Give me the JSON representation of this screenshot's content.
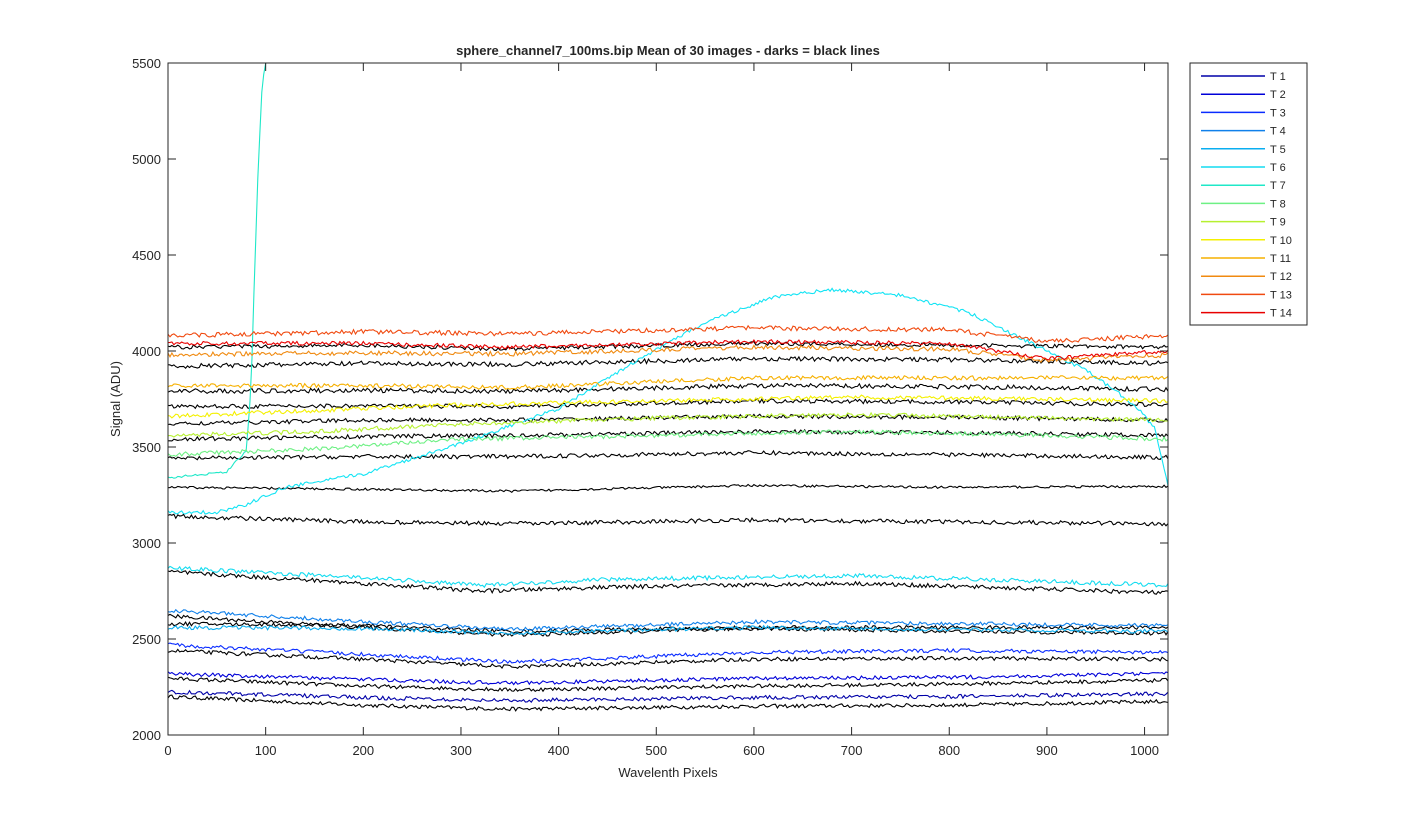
{
  "chart_data": {
    "type": "line",
    "title": "sphere_channel7_100ms.bip  Mean of 30 images - darks = black lines",
    "xlabel": "Wavelenth Pixels",
    "ylabel": "Signal (ADU)",
    "xlim": [
      0,
      1024
    ],
    "ylim": [
      2000,
      5500
    ],
    "xticks": [
      "0",
      "100",
      "200",
      "300",
      "400",
      "500",
      "600",
      "700",
      "800",
      "900",
      "1000"
    ],
    "yticks": [
      "2000",
      "2500",
      "3000",
      "3500",
      "4000",
      "4500",
      "5000",
      "5500"
    ],
    "grid": false,
    "legend_position": "outside-right",
    "series": [
      {
        "name": "T 1",
        "color": "#0000a8",
        "points": [
          [
            0,
            2225
          ],
          [
            200,
            2195
          ],
          [
            350,
            2180
          ],
          [
            600,
            2195
          ],
          [
            800,
            2200
          ],
          [
            1024,
            2215
          ]
        ],
        "noise": 10,
        "dark": [
          [
            0,
            2200
          ],
          [
            200,
            2155
          ],
          [
            350,
            2135
          ],
          [
            600,
            2150
          ],
          [
            800,
            2155
          ],
          [
            1024,
            2175
          ]
        ]
      },
      {
        "name": "T 2",
        "color": "#0000d8",
        "points": [
          [
            0,
            2320
          ],
          [
            200,
            2290
          ],
          [
            350,
            2270
          ],
          [
            600,
            2295
          ],
          [
            800,
            2300
          ],
          [
            1024,
            2320
          ]
        ],
        "noise": 10,
        "dark": [
          [
            0,
            2295
          ],
          [
            200,
            2255
          ],
          [
            350,
            2235
          ],
          [
            600,
            2255
          ],
          [
            800,
            2265
          ],
          [
            1024,
            2285
          ]
        ]
      },
      {
        "name": "T 3",
        "color": "#0a2cff",
        "points": [
          [
            0,
            2470
          ],
          [
            200,
            2420
          ],
          [
            350,
            2380
          ],
          [
            600,
            2430
          ],
          [
            800,
            2440
          ],
          [
            1024,
            2430
          ]
        ],
        "noise": 10,
        "dark": [
          [
            0,
            2440
          ],
          [
            200,
            2395
          ],
          [
            350,
            2355
          ],
          [
            600,
            2395
          ],
          [
            800,
            2400
          ],
          [
            1024,
            2395
          ]
        ]
      },
      {
        "name": "T 4",
        "color": "#1080ea",
        "points": [
          [
            0,
            2650
          ],
          [
            200,
            2590
          ],
          [
            350,
            2550
          ],
          [
            600,
            2590
          ],
          [
            800,
            2580
          ],
          [
            1024,
            2570
          ]
        ],
        "noise": 10,
        "dark": [
          [
            0,
            2620
          ],
          [
            200,
            2560
          ],
          [
            350,
            2520
          ],
          [
            600,
            2555
          ],
          [
            800,
            2540
          ],
          [
            1024,
            2530
          ]
        ]
      },
      {
        "name": "T 5",
        "color": "#0aaef0",
        "points": [
          [
            0,
            2560
          ],
          [
            200,
            2555
          ],
          [
            350,
            2530
          ],
          [
            600,
            2560
          ],
          [
            800,
            2550
          ],
          [
            1024,
            2540
          ]
        ],
        "noise": 10,
        "dark": [
          [
            0,
            2580
          ],
          [
            200,
            2570
          ],
          [
            350,
            2540
          ],
          [
            600,
            2560
          ],
          [
            800,
            2560
          ],
          [
            1024,
            2560
          ]
        ]
      },
      {
        "name": "T 6",
        "color": "#14dcf0",
        "points": [
          [
            0,
            2870
          ],
          [
            200,
            2820
          ],
          [
            320,
            2780
          ],
          [
            450,
            2810
          ],
          [
            700,
            2830
          ],
          [
            900,
            2800
          ],
          [
            1024,
            2780
          ]
        ],
        "noise": 11,
        "dark": [
          [
            0,
            2850
          ],
          [
            200,
            2790
          ],
          [
            320,
            2750
          ],
          [
            450,
            2770
          ],
          [
            700,
            2790
          ],
          [
            900,
            2760
          ],
          [
            1024,
            2740
          ]
        ]
      },
      {
        "name": "T 7",
        "color": "#1fe8c8",
        "points": [
          [
            0,
            3340
          ],
          [
            60,
            3370
          ],
          [
            80,
            3480
          ],
          [
            85,
            3800
          ],
          [
            88,
            4300
          ],
          [
            92,
            4900
          ],
          [
            96,
            5350
          ],
          [
            100,
            5520
          ]
        ],
        "noise": 6,
        "dark": [
          [
            0,
            3290
          ],
          [
            200,
            3280
          ],
          [
            350,
            3270
          ],
          [
            600,
            3300
          ],
          [
            800,
            3290
          ],
          [
            1024,
            3295
          ]
        ]
      },
      {
        "name": "T 8",
        "color": "#6ef084",
        "points": [
          [
            0,
            3460
          ],
          [
            150,
            3490
          ],
          [
            300,
            3540
          ],
          [
            500,
            3560
          ],
          [
            700,
            3580
          ],
          [
            900,
            3560
          ],
          [
            1024,
            3540
          ]
        ],
        "noise": 11,
        "dark": [
          [
            0,
            3440
          ],
          [
            200,
            3450
          ],
          [
            350,
            3450
          ],
          [
            600,
            3470
          ],
          [
            800,
            3460
          ],
          [
            1024,
            3445
          ]
        ]
      },
      {
        "name": "T 9",
        "color": "#b6f030",
        "points": [
          [
            0,
            3560
          ],
          [
            150,
            3580
          ],
          [
            300,
            3620
          ],
          [
            500,
            3650
          ],
          [
            700,
            3670
          ],
          [
            900,
            3650
          ],
          [
            1024,
            3640
          ]
        ],
        "noise": 11,
        "dark": [
          [
            0,
            3540
          ],
          [
            200,
            3555
          ],
          [
            350,
            3560
          ],
          [
            600,
            3580
          ],
          [
            800,
            3575
          ],
          [
            1024,
            3560
          ]
        ]
      },
      {
        "name": "T 10",
        "color": "#f4f000",
        "points": [
          [
            0,
            3660
          ],
          [
            150,
            3690
          ],
          [
            300,
            3720
          ],
          [
            500,
            3740
          ],
          [
            700,
            3760
          ],
          [
            900,
            3750
          ],
          [
            1024,
            3740
          ]
        ],
        "noise": 11,
        "dark": [
          [
            0,
            3620
          ],
          [
            200,
            3640
          ],
          [
            350,
            3640
          ],
          [
            600,
            3660
          ],
          [
            800,
            3655
          ],
          [
            1024,
            3640
          ]
        ]
      },
      {
        "name": "T 11",
        "color": "#f6b000",
        "points": [
          [
            0,
            3820
          ],
          [
            200,
            3820
          ],
          [
            350,
            3810
          ],
          [
            600,
            3860
          ],
          [
            800,
            3860
          ],
          [
            1024,
            3860
          ]
        ],
        "noise": 11,
        "dark": [
          [
            0,
            3710
          ],
          [
            200,
            3715
          ],
          [
            350,
            3710
          ],
          [
            600,
            3740
          ],
          [
            800,
            3735
          ],
          [
            1024,
            3720
          ]
        ]
      },
      {
        "name": "T 12",
        "color": "#f08a10",
        "points": [
          [
            0,
            3980
          ],
          [
            200,
            3990
          ],
          [
            350,
            3985
          ],
          [
            600,
            4020
          ],
          [
            800,
            4010
          ],
          [
            900,
            3950
          ],
          [
            1024,
            3980
          ]
        ],
        "noise": 12,
        "dark": [
          [
            0,
            3790
          ],
          [
            200,
            3795
          ],
          [
            350,
            3790
          ],
          [
            600,
            3820
          ],
          [
            800,
            3815
          ],
          [
            1024,
            3800
          ]
        ]
      },
      {
        "name": "T 13",
        "color": "#f04a10",
        "points": [
          [
            0,
            4080
          ],
          [
            200,
            4100
          ],
          [
            350,
            4090
          ],
          [
            600,
            4120
          ],
          [
            800,
            4110
          ],
          [
            900,
            4050
          ],
          [
            1024,
            4080
          ]
        ],
        "noise": 12,
        "dark": [
          [
            0,
            3920
          ],
          [
            200,
            3935
          ],
          [
            350,
            3930
          ],
          [
            600,
            3960
          ],
          [
            800,
            3955
          ],
          [
            1024,
            3935
          ]
        ]
      },
      {
        "name": "T 14",
        "color": "#e80000",
        "points": [
          [
            0,
            4040
          ],
          [
            200,
            4040
          ],
          [
            350,
            4020
          ],
          [
            600,
            4050
          ],
          [
            800,
            4040
          ],
          [
            900,
            3960
          ],
          [
            1024,
            4000
          ]
        ],
        "noise": 10,
        "dark": [
          [
            0,
            4020
          ],
          [
            200,
            4030
          ],
          [
            350,
            4010
          ],
          [
            600,
            4040
          ],
          [
            800,
            4030
          ],
          [
            1024,
            4020
          ]
        ]
      }
    ],
    "extra_lines": [
      {
        "color": "#14e4f4",
        "points": [
          [
            0,
            3160
          ],
          [
            50,
            3160
          ],
          [
            80,
            3200
          ],
          [
            120,
            3290
          ],
          [
            200,
            3360
          ],
          [
            300,
            3520
          ],
          [
            400,
            3700
          ],
          [
            480,
            3950
          ],
          [
            550,
            4150
          ],
          [
            620,
            4280
          ],
          [
            680,
            4320
          ],
          [
            750,
            4290
          ],
          [
            820,
            4200
          ],
          [
            880,
            4050
          ],
          [
            940,
            3900
          ],
          [
            990,
            3720
          ],
          [
            1010,
            3600
          ],
          [
            1024,
            3300
          ]
        ],
        "noise": 9
      },
      {
        "color": "#000000",
        "points": [
          [
            0,
            3140
          ],
          [
            200,
            3110
          ],
          [
            350,
            3100
          ],
          [
            600,
            3120
          ],
          [
            800,
            3110
          ],
          [
            1024,
            3100
          ]
        ],
        "noise": 11
      }
    ]
  }
}
